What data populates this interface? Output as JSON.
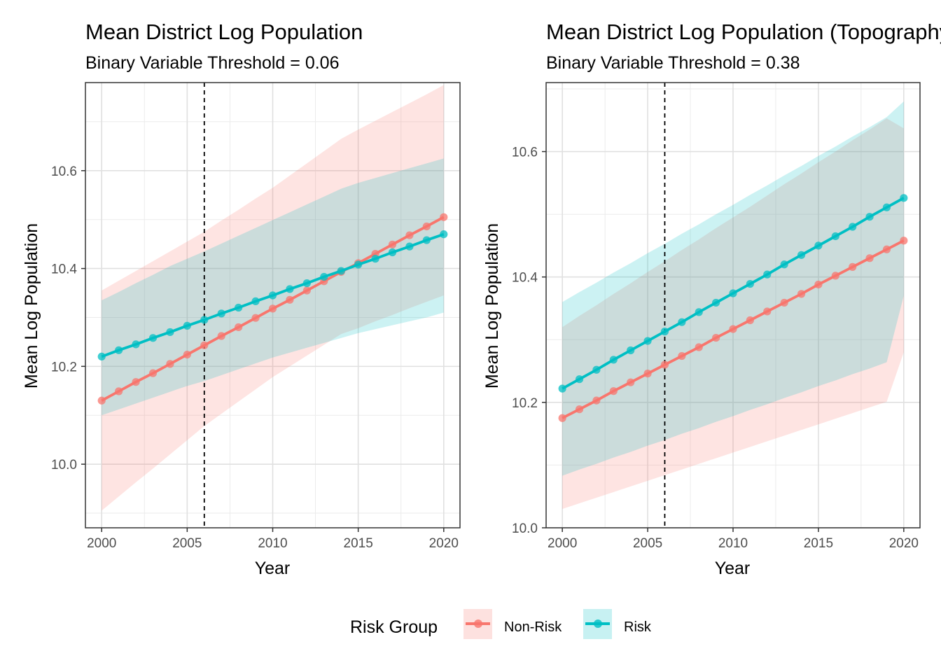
{
  "chart_data": [
    {
      "type": "line",
      "title": "Mean District Log Population",
      "subtitle": "Binary Variable Threshold = 0.06",
      "xlabel": "Year",
      "ylabel": "Mean Log Population",
      "xlim": [
        1999.05,
        2020.95
      ],
      "ylim": [
        9.87,
        10.78
      ],
      "xticks": [
        2000,
        2005,
        2010,
        2015,
        2020
      ],
      "xtick_labels": [
        "2000",
        "2005",
        "2010",
        "2015",
        "2020"
      ],
      "yticks": [
        10.0,
        10.2,
        10.4,
        10.6
      ],
      "ytick_labels": [
        "10.0",
        "10.2",
        "10.4",
        "10.6"
      ],
      "vline_x": 2006,
      "grid": true,
      "x": [
        2000,
        2001,
        2002,
        2003,
        2004,
        2005,
        2006,
        2007,
        2008,
        2009,
        2010,
        2011,
        2012,
        2013,
        2014,
        2015,
        2016,
        2017,
        2018,
        2019,
        2020
      ],
      "series": [
        {
          "name": "Non-Risk",
          "color": "#F8766D",
          "values": [
            10.13,
            10.149,
            10.168,
            10.186,
            10.205,
            10.224,
            10.243,
            10.262,
            10.28,
            10.299,
            10.318,
            10.336,
            10.355,
            10.374,
            10.393,
            10.411,
            10.43,
            10.449,
            10.468,
            10.486,
            10.505
          ],
          "band_lower": [
            9.905,
            9.934,
            9.963,
            9.991,
            10.02,
            10.049,
            10.078,
            10.103,
            10.128,
            10.153,
            10.178,
            10.2,
            10.222,
            10.244,
            10.266,
            10.278,
            10.292,
            10.305,
            10.319,
            10.332,
            10.345
          ],
          "band_upper": [
            10.355,
            10.375,
            10.395,
            10.415,
            10.435,
            10.455,
            10.475,
            10.498,
            10.52,
            10.543,
            10.565,
            10.59,
            10.615,
            10.64,
            10.665,
            10.684,
            10.702,
            10.72,
            10.738,
            10.756,
            10.775
          ]
        },
        {
          "name": "Risk",
          "color": "#00BFC4",
          "values": [
            10.22,
            10.233,
            10.245,
            10.258,
            10.27,
            10.283,
            10.295,
            10.308,
            10.32,
            10.333,
            10.345,
            10.358,
            10.37,
            10.383,
            10.395,
            10.408,
            10.42,
            10.433,
            10.445,
            10.458,
            10.47
          ],
          "band_lower": [
            10.1,
            10.112,
            10.124,
            10.136,
            10.148,
            10.16,
            10.17,
            10.182,
            10.194,
            10.206,
            10.218,
            10.228,
            10.238,
            10.248,
            10.258,
            10.268,
            10.276,
            10.284,
            10.292,
            10.3,
            10.31
          ],
          "band_upper": [
            10.335,
            10.352,
            10.37,
            10.387,
            10.405,
            10.42,
            10.435,
            10.451,
            10.467,
            10.483,
            10.499,
            10.515,
            10.531,
            10.547,
            10.563,
            10.575,
            10.585,
            10.595,
            10.605,
            10.615,
            10.625
          ]
        }
      ]
    },
    {
      "type": "line",
      "title": "Mean District Log Population (Topography)",
      "subtitle": "Binary Variable Threshold = 0.38",
      "xlabel": "Year",
      "ylabel": "Mean Log Population",
      "xlim": [
        1999.05,
        2020.95
      ],
      "ylim": [
        10.0,
        10.71
      ],
      "xticks": [
        2000,
        2005,
        2010,
        2015,
        2020
      ],
      "xtick_labels": [
        "2000",
        "2005",
        "2010",
        "2015",
        "2020"
      ],
      "yticks": [
        10.0,
        10.2,
        10.4,
        10.6
      ],
      "ytick_labels": [
        "10.0",
        "10.2",
        "10.4",
        "10.6"
      ],
      "vline_x": 2006,
      "grid": true,
      "x": [
        2000,
        2001,
        2002,
        2003,
        2004,
        2005,
        2006,
        2007,
        2008,
        2009,
        2010,
        2011,
        2012,
        2013,
        2014,
        2015,
        2016,
        2017,
        2018,
        2019,
        2020
      ],
      "series": [
        {
          "name": "Non-Risk",
          "color": "#F8766D",
          "values": [
            10.175,
            10.189,
            10.203,
            10.218,
            10.232,
            10.246,
            10.26,
            10.274,
            10.288,
            10.303,
            10.317,
            10.331,
            10.345,
            10.359,
            10.373,
            10.388,
            10.402,
            10.416,
            10.43,
            10.444,
            10.458
          ],
          "band_lower": [
            10.03,
            10.039,
            10.048,
            10.057,
            10.066,
            10.075,
            10.084,
            10.093,
            10.102,
            10.111,
            10.12,
            10.129,
            10.138,
            10.147,
            10.156,
            10.165,
            10.174,
            10.183,
            10.192,
            10.201,
            10.28
          ],
          "band_upper": [
            10.32,
            10.338,
            10.355,
            10.373,
            10.39,
            10.408,
            10.425,
            10.443,
            10.46,
            10.478,
            10.495,
            10.512,
            10.53,
            10.548,
            10.565,
            10.583,
            10.6,
            10.618,
            10.635,
            10.653,
            10.637
          ]
        },
        {
          "name": "Risk",
          "color": "#00BFC4",
          "values": [
            10.222,
            10.237,
            10.252,
            10.268,
            10.283,
            10.298,
            10.313,
            10.328,
            10.344,
            10.359,
            10.374,
            10.389,
            10.404,
            10.42,
            10.435,
            10.45,
            10.465,
            10.48,
            10.496,
            10.511,
            10.526
          ],
          "band_lower": [
            10.083,
            10.093,
            10.102,
            10.112,
            10.121,
            10.131,
            10.14,
            10.15,
            10.159,
            10.169,
            10.178,
            10.188,
            10.197,
            10.207,
            10.216,
            10.226,
            10.235,
            10.245,
            10.254,
            10.264,
            10.37
          ],
          "band_upper": [
            10.36,
            10.376,
            10.391,
            10.407,
            10.422,
            10.438,
            10.453,
            10.469,
            10.484,
            10.5,
            10.515,
            10.531,
            10.546,
            10.562,
            10.577,
            10.593,
            10.608,
            10.624,
            10.639,
            10.655,
            10.68
          ]
        }
      ]
    }
  ],
  "legend": {
    "title": "Risk Group",
    "items": [
      {
        "label": "Non-Risk",
        "color": "#F8766D"
      },
      {
        "label": "Risk",
        "color": "#00BFC4"
      }
    ]
  }
}
